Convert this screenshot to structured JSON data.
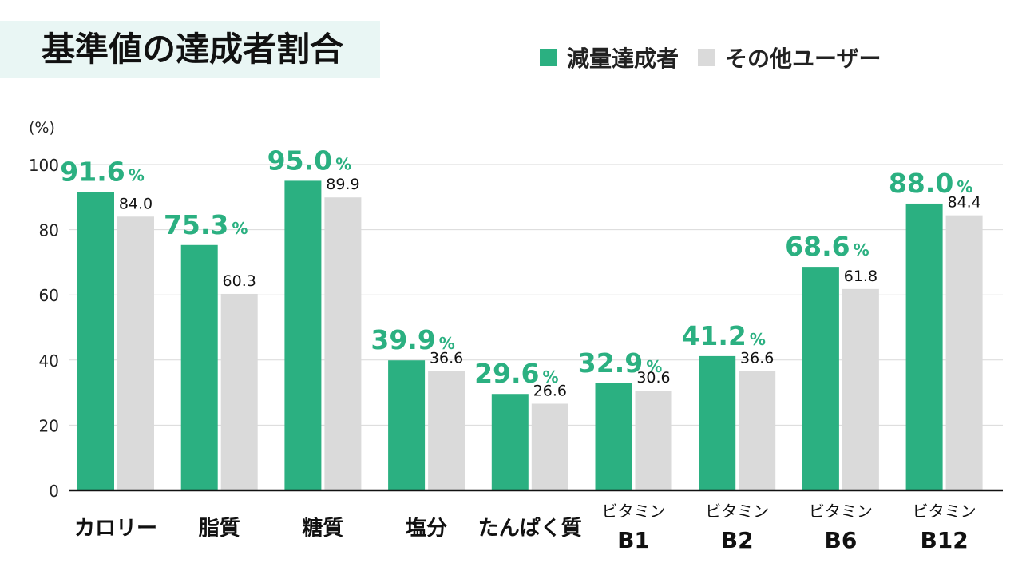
{
  "title": "基準値の達成者割合",
  "colors": {
    "achievers": "#2bb081",
    "others": "#dadada",
    "grid": "#d9d9d9",
    "axis": "#111111",
    "label_green": "#2bb081"
  },
  "legend": [
    {
      "label": "減量達成者",
      "color": "#2bb081"
    },
    {
      "label": "その他ユーザー",
      "color": "#dadada"
    }
  ],
  "chart_data": {
    "type": "bar",
    "y_unit": "(%)",
    "ylim": [
      0,
      100
    ],
    "yticks": [
      0,
      20,
      40,
      60,
      80,
      100
    ],
    "grid": true,
    "legend_position": "top-right",
    "categories": [
      [
        "カロリー"
      ],
      [
        "脂質"
      ],
      [
        "糖質"
      ],
      [
        "塩分"
      ],
      [
        "たんぱく質"
      ],
      [
        "ビタミン",
        "B1"
      ],
      [
        "ビタミン",
        "B2"
      ],
      [
        "ビタミン",
        "B6"
      ],
      [
        "ビタミン",
        "B12"
      ]
    ],
    "series": [
      {
        "name": "減量達成者",
        "values": [
          91.6,
          75.3,
          95.0,
          39.9,
          29.6,
          32.9,
          41.2,
          68.6,
          88.0
        ],
        "label_suffix": "%"
      },
      {
        "name": "その他ユーザー",
        "values": [
          84.0,
          60.3,
          89.9,
          36.6,
          26.6,
          30.6,
          36.6,
          61.8,
          84.4
        ]
      }
    ]
  }
}
